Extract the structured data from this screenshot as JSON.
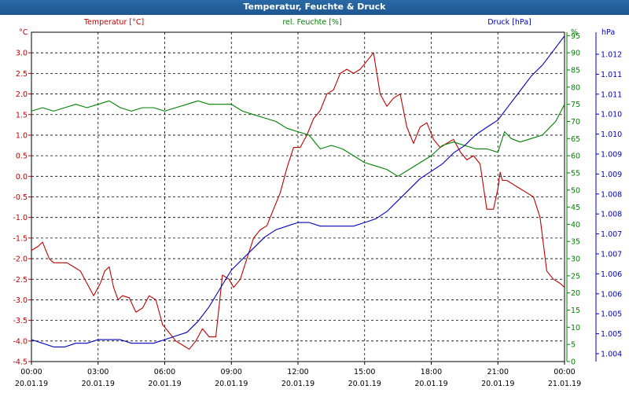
{
  "window": {
    "title": "Temperatur, Feuchte & Druck"
  },
  "chart_data": {
    "type": "line",
    "title": "Temperatur, Feuchte & Druck",
    "x_tick_times": [
      "00:00",
      "03:00",
      "06:00",
      "09:00",
      "12:00",
      "15:00",
      "18:00",
      "21:00",
      "00:00"
    ],
    "x_tick_dates": [
      "20.01.19",
      "20.01.19",
      "20.01.19",
      "20.01.19",
      "20.01.19",
      "20.01.19",
      "20.01.19",
      "20.01.19",
      "21.01.19"
    ],
    "x_hours": [
      0,
      3,
      6,
      9,
      12,
      15,
      18,
      21,
      24
    ],
    "grid": true,
    "axes": {
      "temperature": {
        "label": "Temperatur [°C]",
        "unit": "°C",
        "ylim": [
          -4.5,
          3.5
        ],
        "ticks": [
          "3.0",
          "2.5",
          "2.0",
          "1.5",
          "1.0",
          "0.5",
          "0.0",
          "-0.5",
          "-1.0",
          "-1.5",
          "-2.0",
          "-2.5",
          "-3.0",
          "-3.5",
          "-4.0",
          "-4.5"
        ],
        "color": "#c00000"
      },
      "humidity": {
        "label": "rel. Feuchte [%]",
        "unit": "%",
        "ylim": [
          0,
          96
        ],
        "ticks": [
          "95",
          "90",
          "85",
          "80",
          "75",
          "70",
          "65",
          "60",
          "55",
          "50",
          "45",
          "40",
          "35",
          "30",
          "25",
          "20",
          "15",
          "10",
          "5",
          "0"
        ],
        "color": "#008000"
      },
      "pressure": {
        "label": "Druck [hPa]",
        "unit": "hPa",
        "ylim": [
          1.0035,
          1.0125
        ],
        "ticks": [
          "1.012",
          "1.011",
          "1.011",
          "1.010",
          "1.010",
          "1.009",
          "1.009",
          "1.008",
          "1.008",
          "1.007",
          "1.007",
          "1.006",
          "1.006",
          "1.005",
          "1.005",
          "1.004"
        ],
        "color": "#0000c0"
      }
    },
    "series": [
      {
        "name": "Temperatur [°C]",
        "axis": "temperature",
        "color": "#c00000",
        "x": [
          0,
          0.3,
          0.5,
          0.8,
          1.0,
          1.3,
          1.6,
          1.9,
          2.2,
          2.5,
          2.8,
          3.1,
          3.3,
          3.5,
          3.7,
          3.9,
          4.1,
          4.4,
          4.7,
          5.0,
          5.3,
          5.6,
          5.9,
          6.2,
          6.5,
          6.8,
          7.1,
          7.4,
          7.7,
          8.0,
          8.3,
          8.6,
          8.9,
          9.1,
          9.4,
          9.7,
          10.0,
          10.3,
          10.6,
          10.9,
          11.2,
          11.5,
          11.8,
          12.1,
          12.4,
          12.7,
          13.0,
          13.3,
          13.6,
          13.9,
          14.2,
          14.5,
          14.8,
          15.1,
          15.4,
          15.7,
          16.0,
          16.3,
          16.6,
          16.9,
          17.2,
          17.5,
          17.8,
          18.1,
          18.4,
          18.7,
          19.0,
          19.3,
          19.6,
          19.9,
          20.2,
          20.5,
          20.8,
          21.0,
          21.1,
          21.2,
          21.4,
          21.7,
          22.0,
          22.3,
          22.6,
          22.9,
          23.2,
          23.5,
          23.8,
          24.0
        ],
        "values": [
          -1.8,
          -1.7,
          -1.6,
          -2.0,
          -2.1,
          -2.1,
          -2.1,
          -2.2,
          -2.3,
          -2.6,
          -2.9,
          -2.6,
          -2.3,
          -2.2,
          -2.7,
          -3.0,
          -2.9,
          -2.95,
          -3.3,
          -3.2,
          -2.9,
          -3.0,
          -3.6,
          -3.8,
          -4.0,
          -4.1,
          -4.2,
          -4.0,
          -3.7,
          -3.9,
          -3.9,
          -2.4,
          -2.5,
          -2.7,
          -2.5,
          -2.0,
          -1.5,
          -1.3,
          -1.2,
          -0.8,
          -0.4,
          0.2,
          0.7,
          0.7,
          1.0,
          1.4,
          1.6,
          2.0,
          2.1,
          2.5,
          2.6,
          2.5,
          2.6,
          2.8,
          3.0,
          2.0,
          1.7,
          1.9,
          2.0,
          1.2,
          0.8,
          1.2,
          1.3,
          0.9,
          0.7,
          0.8,
          0.9,
          0.6,
          0.4,
          0.5,
          0.3,
          -0.8,
          -0.8,
          -0.3,
          0.1,
          -0.1,
          -0.1,
          -0.2,
          -0.3,
          -0.4,
          -0.5,
          -1.0,
          -2.3,
          -2.5,
          -2.6,
          -2.7
        ]
      },
      {
        "name": "rel. Feuchte [%]",
        "axis": "humidity",
        "color": "#008000",
        "x": [
          0,
          0.5,
          1.0,
          1.5,
          2.0,
          2.5,
          3.0,
          3.5,
          4.0,
          4.5,
          5.0,
          5.5,
          6.0,
          6.5,
          7.0,
          7.5,
          8.0,
          8.5,
          9.0,
          9.5,
          10.0,
          10.5,
          11.0,
          11.5,
          12.0,
          12.5,
          13.0,
          13.5,
          14.0,
          14.5,
          15.0,
          15.5,
          16.0,
          16.5,
          17.0,
          17.5,
          18.0,
          18.5,
          19.0,
          19.5,
          20.0,
          20.5,
          21.0,
          21.3,
          21.6,
          22.0,
          22.5,
          23.0,
          23.3,
          23.6,
          24.0
        ],
        "values": [
          73,
          74,
          73,
          74,
          75,
          74,
          75,
          76,
          74,
          73,
          74,
          74,
          73,
          74,
          75,
          76,
          75,
          75,
          75,
          73,
          72,
          71,
          70,
          68,
          67,
          66,
          62,
          63,
          62,
          60,
          58,
          57,
          56,
          54,
          56,
          58,
          60,
          63,
          64,
          63,
          62,
          62,
          61,
          67,
          65,
          64,
          65,
          66,
          68,
          70,
          75
        ]
      },
      {
        "name": "Druck [hPa]",
        "axis": "pressure",
        "color": "#0000c0",
        "x": [
          0,
          0.5,
          1.0,
          1.5,
          2.0,
          2.5,
          3.0,
          3.5,
          4.0,
          4.5,
          5.0,
          5.5,
          6.0,
          6.5,
          7.0,
          7.5,
          8.0,
          8.5,
          9.0,
          9.5,
          10.0,
          10.5,
          11.0,
          11.5,
          12.0,
          12.5,
          13.0,
          13.5,
          14.0,
          14.5,
          15.0,
          15.5,
          16.0,
          16.5,
          17.0,
          17.5,
          18.0,
          18.5,
          19.0,
          19.5,
          20.0,
          20.5,
          21.0,
          21.5,
          22.0,
          22.5,
          23.0,
          23.5,
          24.0
        ],
        "values": [
          1.0041,
          1.004,
          1.0039,
          1.0039,
          1.004,
          1.004,
          1.0041,
          1.0041,
          1.0041,
          1.004,
          1.004,
          1.004,
          1.0041,
          1.0042,
          1.0043,
          1.0046,
          1.005,
          1.0055,
          1.006,
          1.0063,
          1.0066,
          1.0069,
          1.0071,
          1.0072,
          1.0073,
          1.0073,
          1.0072,
          1.0072,
          1.0072,
          1.0072,
          1.0073,
          1.0074,
          1.0076,
          1.0079,
          1.0082,
          1.0085,
          1.0087,
          1.0089,
          1.0092,
          1.0094,
          1.0097,
          1.0099,
          1.0101,
          1.0105,
          1.0109,
          1.0113,
          1.0116,
          1.012,
          1.0124
        ]
      }
    ]
  }
}
